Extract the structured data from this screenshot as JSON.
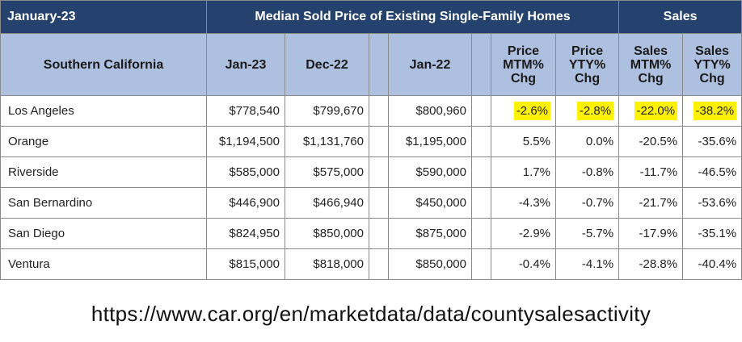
{
  "header": {
    "period": "January-23",
    "median_group": "Median Sold Price of Existing Single-Family Homes",
    "sales_group": "Sales"
  },
  "columns": {
    "region": "Southern California",
    "jan23": "Jan-23",
    "dec22": "Dec-22",
    "jan22": "Jan-22",
    "price_mtm": "Price MTM% Chg",
    "price_yty": "Price YTY% Chg",
    "sales_mtm": "Sales MTM% Chg",
    "sales_yty": "Sales YTY% Chg"
  },
  "rows": [
    {
      "region": "Los Angeles",
      "jan23": "$778,540",
      "dec22": "$799,670",
      "jan22": "$800,960",
      "price_mtm": "-2.6%",
      "price_yty": "-2.8%",
      "sales_mtm": "-22.0%",
      "sales_yty": "-38.2%"
    },
    {
      "region": "Orange",
      "jan23": "$1,194,500",
      "dec22": "$1,131,760",
      "jan22": "$1,195,000",
      "price_mtm": "5.5%",
      "price_yty": "0.0%",
      "sales_mtm": "-20.5%",
      "sales_yty": "-35.6%"
    },
    {
      "region": "Riverside",
      "jan23": "$585,000",
      "dec22": "$575,000",
      "jan22": "$590,000",
      "price_mtm": "1.7%",
      "price_yty": "-0.8%",
      "sales_mtm": "-11.7%",
      "sales_yty": "-46.5%"
    },
    {
      "region": "San Bernardino",
      "jan23": "$446,900",
      "dec22": "$466,940",
      "jan22": "$450,000",
      "price_mtm": "-4.3%",
      "price_yty": "-0.7%",
      "sales_mtm": "-21.7%",
      "sales_yty": "-53.6%"
    },
    {
      "region": "San Diego",
      "jan23": "$824,950",
      "dec22": "$850,000",
      "jan22": "$875,000",
      "price_mtm": "-2.9%",
      "price_yty": "-5.7%",
      "sales_mtm": "-17.9%",
      "sales_yty": "-35.1%"
    },
    {
      "region": "Ventura",
      "jan23": "$815,000",
      "dec22": "$818,000",
      "jan22": "$850,000",
      "price_mtm": "-0.4%",
      "price_yty": "-4.1%",
      "sales_mtm": "-28.8%",
      "sales_yty": "-40.4%"
    }
  ],
  "highlight_color": "#fff200",
  "source_url": "https://www.car.org/en/marketdata/data/countysalesactivity"
}
